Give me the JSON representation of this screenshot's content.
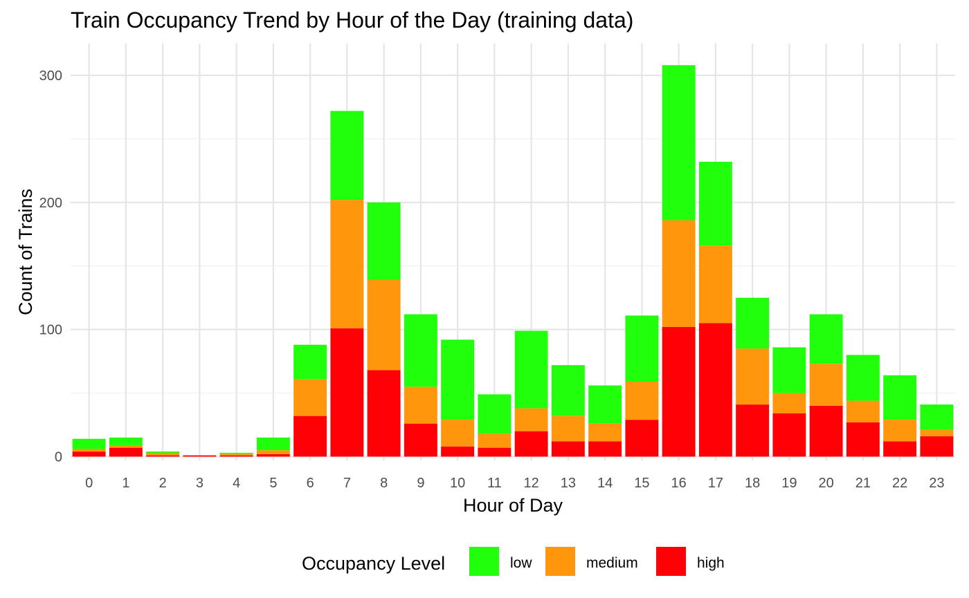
{
  "chart_data": {
    "type": "bar",
    "stacked": true,
    "title": "Train Occupancy Trend by Hour of the Day (training data)",
    "xlabel": "Hour of Day",
    "ylabel": "Count of Trains",
    "categories": [
      "0",
      "1",
      "2",
      "3",
      "4",
      "5",
      "6",
      "7",
      "8",
      "9",
      "10",
      "11",
      "12",
      "13",
      "14",
      "15",
      "16",
      "17",
      "18",
      "19",
      "20",
      "21",
      "22",
      "23"
    ],
    "ylim": [
      -3,
      325
    ],
    "yticks": [
      0,
      100,
      200,
      300
    ],
    "grid": true,
    "legend": {
      "title": "Occupancy Level",
      "position": "bottom",
      "items": [
        {
          "label": "low",
          "color": "#22ff0c"
        },
        {
          "label": "medium",
          "color": "#ff960c"
        },
        {
          "label": "high",
          "color": "#ff0006"
        }
      ]
    },
    "series": [
      {
        "name": "high",
        "color": "#ff0006",
        "values": [
          4,
          7,
          1,
          1,
          1,
          2,
          32,
          101,
          68,
          26,
          8,
          7,
          20,
          12,
          12,
          29,
          102,
          105,
          41,
          34,
          40,
          27,
          12,
          16
        ]
      },
      {
        "name": "medium",
        "color": "#ff960c",
        "values": [
          2,
          2,
          2,
          0,
          1,
          3,
          29,
          101,
          71,
          29,
          21,
          11,
          18,
          20,
          14,
          30,
          84,
          61,
          44,
          16,
          33,
          17,
          17,
          5
        ]
      },
      {
        "name": "low",
        "color": "#22ff0c",
        "values": [
          8,
          6,
          1,
          0,
          1,
          10,
          27,
          70,
          61,
          57,
          63,
          31,
          61,
          40,
          30,
          52,
          122,
          66,
          40,
          36,
          39,
          36,
          35,
          20
        ]
      }
    ]
  }
}
